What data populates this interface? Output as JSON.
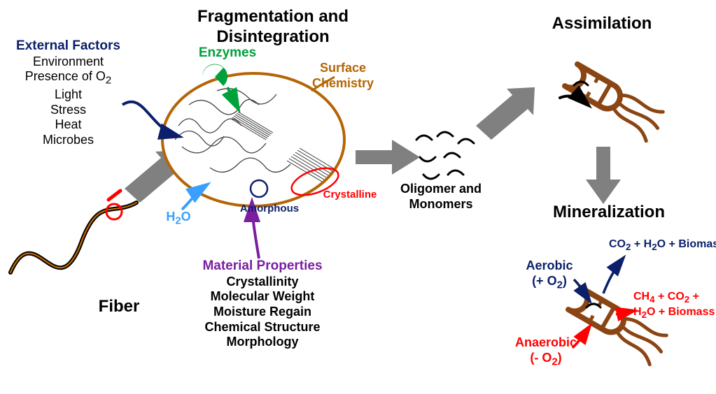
{
  "colors": {
    "black": "#000000",
    "darkblue": "#0b1f6a",
    "green": "#00a13a",
    "brown": "#b46504",
    "purple": "#7a1fa2",
    "red": "#ff0000",
    "blue": "#1f6fff",
    "lightblue": "#3aa0ff",
    "gray": "#808080",
    "microbe_brown": "#8b4513",
    "microbe_fill": "#8b4513"
  },
  "titles": {
    "fragmentation": "Fragmentation and Disintegration",
    "assimilation": "Assimilation",
    "mineralization": "Mineralization",
    "fiber": "Fiber",
    "external_factors": "External Factors",
    "material_props": "Material Properties"
  },
  "external_factors": [
    "Environment",
    "Presence of O",
    "Light",
    "Stress",
    "Heat",
    "Microbes"
  ],
  "material_props": [
    "Crystallinity",
    "Molecular Weight",
    "Moisture Regain",
    "Chemical Structure",
    "Morphology"
  ],
  "labels": {
    "enzymes": "Enzymes",
    "surface_chem": "Surface Chemistry",
    "h2o": "H",
    "h2o_sub": "2",
    "h2o_end": "O",
    "amorphous": "Amorphous",
    "crystalline": "Crystalline",
    "oligomer": "Oligomer and Monomers",
    "aerobic": "Aerobic",
    "aerobic_sub": "(+ O",
    "aerobic_sub2": "2",
    "aerobic_sub_end": ")",
    "anaerobic": "Anaerobic",
    "anaerobic_sub": "(- O",
    "anaerobic_sub2": "2",
    "anaerobic_sub_end": ")",
    "aerobic_products": "CO",
    "ap2": "2",
    "ap3": " + H",
    "ap4": "2",
    "ap5": "O + Biomass",
    "anaerobic_products": "CH",
    "anp2": "4",
    "anp3": " + CO",
    "anp4": "2",
    "anp5": " + H",
    "anp6": "2",
    "anp7": "O + Biomass"
  },
  "font": {
    "title": 24,
    "heading": 20,
    "body": 18,
    "small": 16
  }
}
